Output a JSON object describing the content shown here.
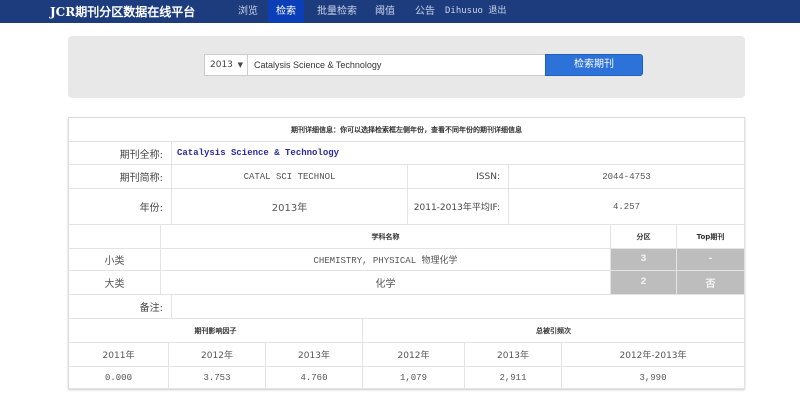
{
  "nav": {
    "brand": "JCR期刊分区数据在线平台",
    "items": [
      {
        "label": "浏览"
      },
      {
        "label": "检索",
        "active": true
      },
      {
        "label": "批量检索"
      },
      {
        "label": "阈值"
      },
      {
        "label": "公告"
      },
      {
        "label": "Dihusuo 退出"
      }
    ]
  },
  "search": {
    "year": "2013",
    "query": "Catalysis Science & Technology",
    "button": "检索期刊"
  },
  "detail": {
    "header": "期刊详细信息：你可以选择检索框左侧年份，查看不同年份的期刊详细信息",
    "full_name_label": "期刊全称:",
    "full_name": "Catalysis Science & Technology",
    "abbr_label": "期刊简称:",
    "abbr": "CATAL SCI TECHNOL",
    "issn_label": "ISSN:",
    "issn": "2044-4753",
    "year_label": "年份:",
    "year": "2013年",
    "avg_if_label": "2011-2013年平均IF:",
    "avg_if": "4.257",
    "subject_header": "学科名称",
    "zone_header": "分区",
    "top_header": "Top期刊",
    "minor_label": "小类",
    "minor_subject": "CHEMISTRY, PHYSICAL 物理化学",
    "minor_zone": "3",
    "minor_top": "-",
    "major_label": "大类",
    "major_subject": "化学",
    "major_zone": "2",
    "major_top": "否",
    "note_label": "备注:",
    "note": "",
    "if_header": "期刊影响因子",
    "cite_header": "总被引频次",
    "years": [
      "2011年",
      "2012年",
      "2013年",
      "2012年",
      "2013年",
      "2012年-2013年"
    ],
    "values": [
      "0.000",
      "3.753",
      "4.760",
      "1,079",
      "2,911",
      "3,990"
    ]
  },
  "colors": {
    "nav": "#1d3c7e",
    "nav_active": "#0b3fb8",
    "button": "#2c72d8",
    "zone_cell": "#bdbdbd"
  }
}
